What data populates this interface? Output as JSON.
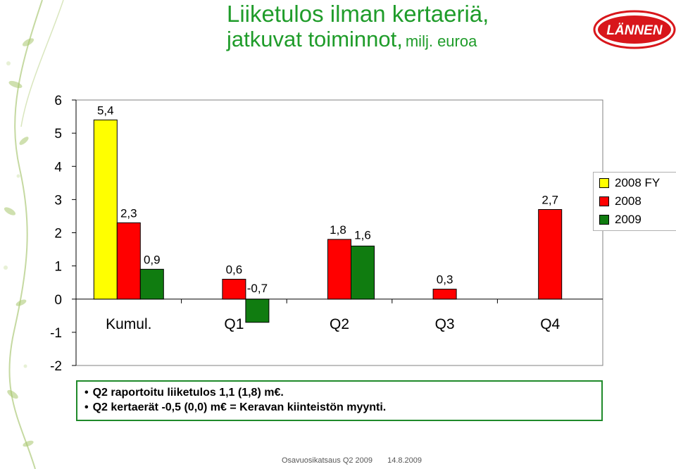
{
  "header": {
    "title_line1": "Liiketulos ilman kertaeriä,",
    "title_line2": "jatkuvat toiminnot,",
    "title_suffix": "milj. euroa",
    "title_color": "#1f9c2a"
  },
  "logo": {
    "text": "LÄNNEN",
    "color": "#d8161b"
  },
  "chart_data": {
    "type": "bar",
    "categories": [
      "Kumul.",
      "Q1",
      "Q2",
      "Q3",
      "Q4"
    ],
    "series": [
      {
        "name": "2008 FY",
        "color": "#ffff00",
        "values": [
          5.4,
          null,
          null,
          null,
          null
        ]
      },
      {
        "name": "2008",
        "color": "#ff0000",
        "values": [
          2.3,
          0.6,
          1.8,
          0.3,
          2.7
        ]
      },
      {
        "name": "2009",
        "color": "#107c10",
        "values": [
          0.9,
          -0.7,
          1.6,
          null,
          null
        ]
      }
    ],
    "data_labels": [
      {
        "series": 0,
        "index": 0,
        "text": "5,4"
      },
      {
        "series": 1,
        "index": 0,
        "text": "2,3"
      },
      {
        "series": 2,
        "index": 0,
        "text": "0,9"
      },
      {
        "series": 1,
        "index": 1,
        "text": "0,6"
      },
      {
        "series": 2,
        "index": 1,
        "text": "-0,7"
      },
      {
        "series": 1,
        "index": 2,
        "text": "1,8"
      },
      {
        "series": 2,
        "index": 2,
        "text": "1,6"
      },
      {
        "series": 1,
        "index": 3,
        "text": "0,3"
      },
      {
        "series": 1,
        "index": 4,
        "text": "2,7"
      }
    ],
    "yticks": [
      "-2",
      "-1",
      "0",
      "1",
      "2",
      "3",
      "4",
      "5",
      "6"
    ],
    "ylim": [
      -2,
      6
    ],
    "grid": false,
    "legend_position": "right",
    "title": "",
    "xlabel": "",
    "ylabel": ""
  },
  "notes": [
    "Q2 raportoitu liiketulos 1,1 (1,8) m€.",
    "Q2 kertaerät -0,5 (0,0) m€ = Keravan kiinteistön myynti."
  ],
  "footer": {
    "left": "Osavuosikatsaus Q2 2009",
    "right": "14.8.2009"
  }
}
